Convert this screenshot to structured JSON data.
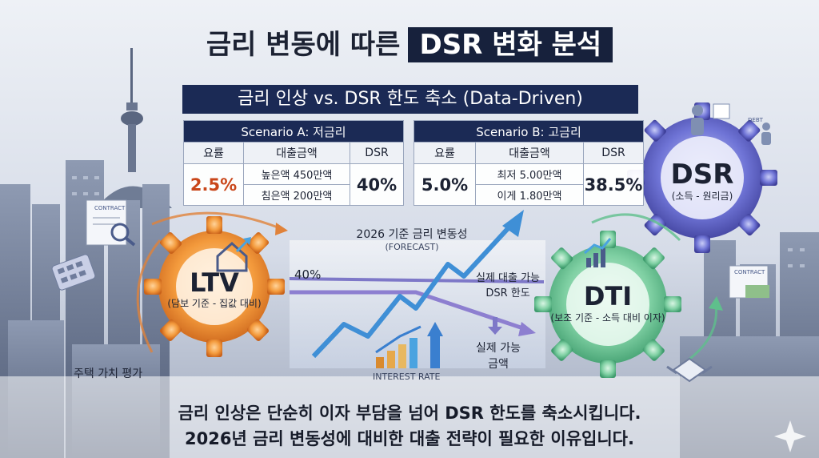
{
  "title": {
    "plain": "금리 변동에 따른",
    "highlight": "DSR 변화 분석"
  },
  "subtitle": "금리 인상 vs. DSR 한도 축소 (Data-Driven)",
  "scenario_a": {
    "header": "Scenario A: 저금리",
    "columns": [
      "요률",
      "대출금액",
      "DSR"
    ],
    "rate": "2.5%",
    "amounts": [
      "높은액 450만액",
      "침은액 200만액"
    ],
    "dsr": "40%"
  },
  "scenario_b": {
    "header": "Scenario B: 고금리",
    "columns": [
      "요률",
      "대출금액",
      "DSR"
    ],
    "rate": "5.0%",
    "amounts": [
      "최저 5.00만액",
      "이게 1.80만액"
    ],
    "dsr": "38.5%"
  },
  "ltv": {
    "name": "LTV",
    "desc": "(담보 기준 - 집값 대비)",
    "caption": "주택 가치 평가"
  },
  "dti": {
    "name": "DTI",
    "desc": "(보조 기준 - 소득 대비 이자)"
  },
  "dsr_gear": {
    "name": "DSR",
    "desc": "(소득 - 원리금)"
  },
  "chart": {
    "forecast_title": "2026 기준 금리 변동성",
    "forecast_sub": "(FORECAST)",
    "level_label": "40%",
    "limit_label": [
      "실제 대출 가능",
      "DSR 한도"
    ],
    "actual_label": [
      "실제 가능",
      "금액"
    ],
    "interest_label": "INTEREST RATE"
  },
  "icons": {
    "contract": "CONTRACT",
    "contract2": "CONTRACT",
    "debt": "DEBT"
  },
  "bottom": [
    "금리 인상은 단순히 이자 부담을 넘어 DSR 한도를 축소시킵니다.",
    "2026년 금리 변동성에 대비한 대출 전략이 필요한 이유입니다."
  ],
  "colors": {
    "navy": "#1b2a55",
    "ltv": "#ef8a2e",
    "dti": "#5fbf8c",
    "dsr": "#5f63c4",
    "arrow": "#4aa3e0"
  }
}
